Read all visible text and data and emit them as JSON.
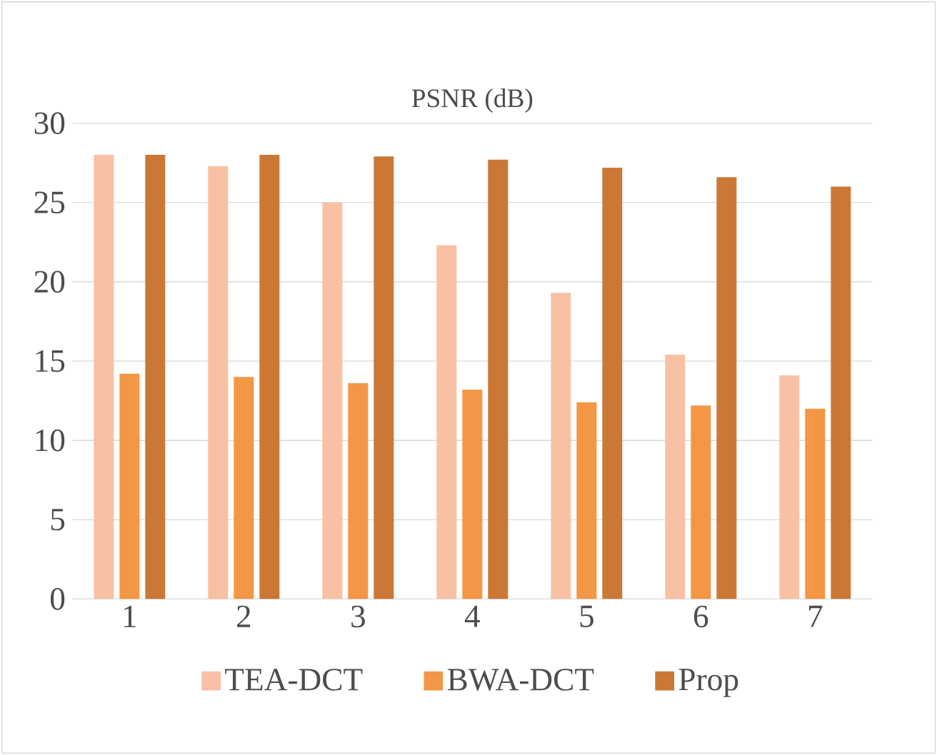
{
  "chart_data": {
    "type": "bar",
    "title": "PSNR (dB)",
    "categories": [
      "1",
      "2",
      "3",
      "4",
      "5",
      "6",
      "7"
    ],
    "series": [
      {
        "name": "TEA-DCT",
        "color": "#f8c1a4",
        "values": [
          28.0,
          27.3,
          25.0,
          22.3,
          19.3,
          15.4,
          14.1
        ]
      },
      {
        "name": "BWA-DCT",
        "color": "#f39646",
        "values": [
          14.2,
          14.0,
          13.6,
          13.2,
          12.4,
          12.2,
          12.0
        ]
      },
      {
        "name": "Prop",
        "color": "#cb7836",
        "values": [
          28.0,
          28.0,
          27.9,
          27.7,
          27.2,
          26.6,
          26.0
        ]
      }
    ],
    "ylim": [
      0,
      30
    ],
    "yticks": [
      0,
      5,
      10,
      15,
      20,
      25,
      30
    ],
    "grid": "y",
    "legend": "bottom"
  }
}
